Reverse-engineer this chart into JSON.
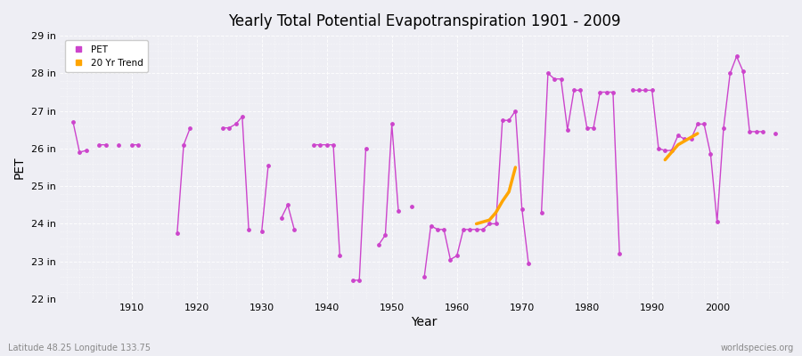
{
  "title": "Yearly Total Potential Evapotranspiration 1901 - 2009",
  "xlabel": "Year",
  "ylabel": "PET",
  "lat_label": "Latitude 48.25 Longitude 133.75",
  "source_label": "worldspecies.org",
  "ylim": [
    22,
    29
  ],
  "yticks": [
    22,
    23,
    24,
    25,
    26,
    27,
    28,
    29
  ],
  "ytick_labels": [
    "22 in",
    "23 in",
    "24 in",
    "25 in",
    "26 in",
    "27 in",
    "28 in",
    "29 in"
  ],
  "bg_color": "#eeeef4",
  "plot_bg_color": "#eeeef4",
  "pet_color": "#cc44cc",
  "trend_color": "#FFA500",
  "pet_years": [
    1901,
    1902,
    1903,
    1905,
    1906,
    1908,
    1910,
    1911,
    1917,
    1918,
    1919,
    1924,
    1925,
    1926,
    1927,
    1928,
    1930,
    1931,
    1933,
    1934,
    1935,
    1938,
    1939,
    1940,
    1941,
    1942,
    1944,
    1945,
    1946,
    1948,
    1949,
    1950,
    1951,
    1953,
    1955,
    1956,
    1957,
    1958,
    1959,
    1960,
    1961,
    1962,
    1963,
    1964,
    1965,
    1966,
    1967,
    1968,
    1969,
    1970,
    1971,
    1973,
    1974,
    1975,
    1976,
    1977,
    1978,
    1979,
    1980,
    1981,
    1982,
    1983,
    1984,
    1985,
    1987,
    1988,
    1989,
    1990,
    1991,
    1992,
    1993,
    1994,
    1995,
    1996,
    1997,
    1998,
    1999,
    2000,
    2001,
    2002,
    2003,
    2004,
    2005,
    2006,
    2007,
    2009
  ],
  "pet_values": [
    26.7,
    25.9,
    25.95,
    26.1,
    26.1,
    26.1,
    26.1,
    26.1,
    23.75,
    26.1,
    26.55,
    26.55,
    26.55,
    26.65,
    26.85,
    23.85,
    23.8,
    25.55,
    24.15,
    24.5,
    23.85,
    26.1,
    26.1,
    26.1,
    26.1,
    23.15,
    22.5,
    22.5,
    26.0,
    23.45,
    23.7,
    26.65,
    24.35,
    24.45,
    22.6,
    23.95,
    23.85,
    23.85,
    23.05,
    23.15,
    23.85,
    23.85,
    23.85,
    23.85,
    24.0,
    24.0,
    26.75,
    26.75,
    27.0,
    24.4,
    22.95,
    24.3,
    28.0,
    27.85,
    27.85,
    26.5,
    27.55,
    27.55,
    26.55,
    26.55,
    27.5,
    27.5,
    27.5,
    23.2,
    27.55,
    27.55,
    27.55,
    27.55,
    26.0,
    25.95,
    25.95,
    26.35,
    26.25,
    26.25,
    26.65,
    26.65,
    25.85,
    24.05,
    26.55,
    28.0,
    28.45,
    28.05,
    26.45,
    26.45,
    26.45,
    26.4
  ],
  "trend_seg1_years": [
    1963,
    1964,
    1965,
    1966,
    1967,
    1968,
    1969
  ],
  "trend_seg1_vals": [
    24.0,
    24.05,
    24.1,
    24.3,
    24.6,
    24.85,
    25.5
  ],
  "trend_seg2_years": [
    1992,
    1993,
    1994,
    1995,
    1996,
    1997
  ],
  "trend_seg2_vals": [
    25.7,
    25.9,
    26.1,
    26.2,
    26.3,
    26.4
  ],
  "xticks": [
    1910,
    1920,
    1930,
    1940,
    1950,
    1960,
    1970,
    1980,
    1990,
    2000
  ],
  "xlim": [
    1899,
    2011
  ]
}
